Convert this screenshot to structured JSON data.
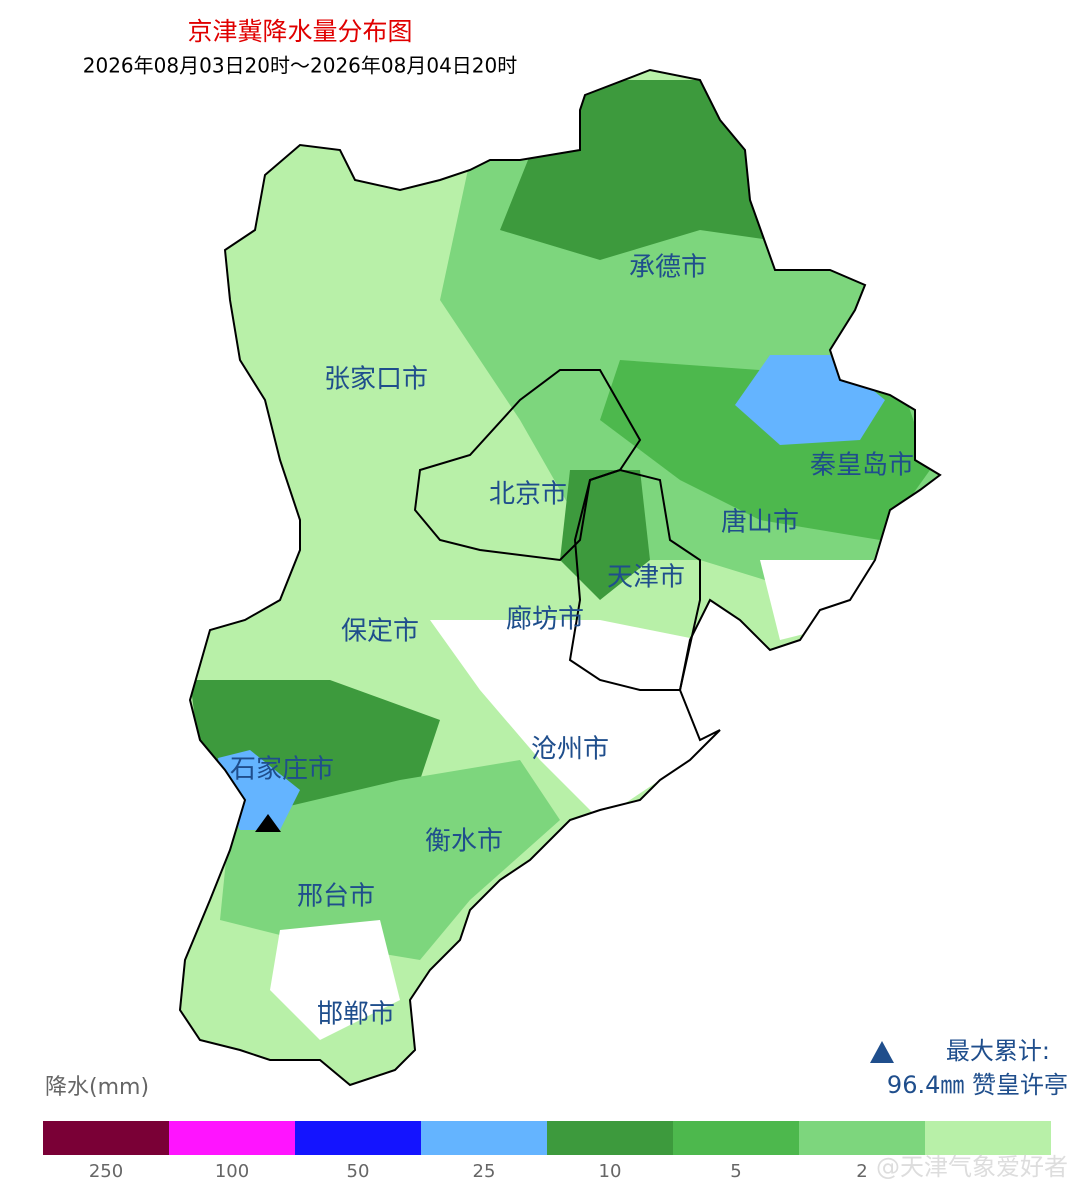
{
  "header": {
    "title": "京津冀降水量分布图",
    "subtitle": "2026年08月03日20时～2026年08月04日20时"
  },
  "cities": [
    "承德市",
    "张家口市",
    "秦皇岛市",
    "北京市",
    "唐山市",
    "天津市",
    "保定市",
    "廊坊市",
    "沧州市",
    "石家庄市",
    "衡水市",
    "邢台市",
    "邯郸市"
  ],
  "max_info": {
    "title": "最大累计:",
    "value": "96.4㎜ 赞皇许亭"
  },
  "legend": {
    "title": "降水(mm)",
    "items": [
      {
        "color": "#7a0036",
        "label": 250
      },
      {
        "color": "#ff14ff",
        "label": 100
      },
      {
        "color": "#1414ff",
        "label": 50
      },
      {
        "color": "#64b4ff",
        "label": 25
      },
      {
        "color": "#3d9a3d",
        "label": 10
      },
      {
        "color": "#4db84d",
        "label": 5
      },
      {
        "color": "#7dd67d",
        "label": 2
      },
      {
        "color": "#b8f0a8",
        "label": null
      }
    ]
  },
  "watermark": "@天津气象爱好者"
}
